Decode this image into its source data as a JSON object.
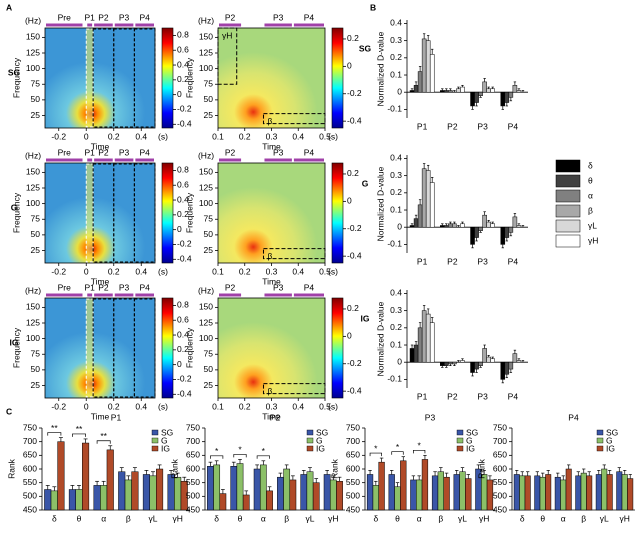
{
  "panel_labels": [
    "A",
    "B",
    "C"
  ],
  "chart_data": [
    {
      "type": "spectrogram",
      "rows": [
        {
          "name": "SG"
        },
        {
          "name": "G"
        },
        {
          "name": "IG"
        }
      ],
      "xlabel": "Time",
      "ylabel": "Frequency",
      "xunit": "(s)",
      "yunit": "(Hz)",
      "xlim": [
        -0.3,
        0.5
      ],
      "xticks": [
        -0.2,
        0,
        0.2,
        0.4
      ],
      "ylim": [
        5,
        165
      ],
      "yticks": [
        25,
        50,
        75,
        100,
        125,
        150
      ],
      "periods": [
        {
          "label": "Pre",
          "range": [
            -0.3,
            -0.02
          ]
        },
        {
          "label": "P1",
          "range": [
            0,
            0.05
          ]
        },
        {
          "label": "P2",
          "range": [
            0.05,
            0.2
          ]
        },
        {
          "label": "P3",
          "range": [
            0.2,
            0.35
          ]
        },
        {
          "label": "P4",
          "range": [
            0.35,
            0.5
          ]
        }
      ],
      "clim": [
        -0.45,
        0.9
      ],
      "cticks": [
        -0.4,
        -0.2,
        0,
        0.2,
        0.4,
        0.6,
        0.8
      ]
    },
    {
      "type": "spectrogram",
      "rows": [
        {
          "boxes": [
            {
              "label": "γH",
              "x": [
                0.1,
                0.17
              ],
              "y": [
                75,
                165
              ]
            },
            {
              "label": "β",
              "x": [
                0.27,
                0.5
              ],
              "y": [
                12,
                28
              ]
            }
          ]
        },
        {
          "boxes": [
            {
              "label": "β",
              "x": [
                0.27,
                0.5
              ],
              "y": [
                12,
                28
              ]
            }
          ]
        },
        {
          "boxes": [
            {
              "label": "β",
              "x": [
                0.27,
                0.5
              ],
              "y": [
                12,
                28
              ]
            }
          ]
        }
      ],
      "xlabel": "Time",
      "ylabel": "Frequency",
      "xunit": "(s)",
      "yunit": "(Hz)",
      "xlim": [
        0.1,
        0.5
      ],
      "xticks": [
        0.1,
        0.2,
        0.3,
        0.4,
        0.5
      ],
      "ylim": [
        5,
        165
      ],
      "yticks": [
        25,
        50,
        75,
        100,
        125,
        150
      ],
      "periods": [
        {
          "label": "P2",
          "range": [
            0.1,
            0.19
          ]
        },
        {
          "label": "P3",
          "range": [
            0.27,
            0.38
          ]
        },
        {
          "label": "P4",
          "range": [
            0.38,
            0.5
          ]
        }
      ],
      "clim": [
        -0.45,
        0.28
      ],
      "cticks": [
        -0.4,
        -0.2,
        0,
        0.2
      ]
    },
    {
      "type": "bar",
      "title": "SG",
      "ylabel": "Normalized D-value",
      "categories": [
        "P1",
        "P2",
        "P3",
        "P4"
      ],
      "ylim": [
        -0.15,
        0.42
      ],
      "yticks": [
        -0.1,
        0,
        0.1,
        0.2,
        0.3,
        0.4
      ],
      "series": [
        {
          "name": "δ",
          "color": "#000000",
          "values": [
            0.01,
            0.01,
            -0.08,
            -0.08
          ],
          "errors": [
            0.01,
            0.01,
            0.02,
            0.02
          ]
        },
        {
          "name": "θ",
          "color": "#404040",
          "values": [
            0.04,
            0.01,
            -0.06,
            -0.06
          ],
          "errors": [
            0.02,
            0.01,
            0.02,
            0.02
          ]
        },
        {
          "name": "α",
          "color": "#808080",
          "values": [
            0.12,
            0.01,
            -0.02,
            -0.03
          ],
          "errors": [
            0.03,
            0.01,
            0.01,
            0.02
          ]
        },
        {
          "name": "β",
          "color": "#a8a8a8",
          "values": [
            0.31,
            0.0,
            0.06,
            0.04
          ],
          "errors": [
            0.03,
            0.01,
            0.02,
            0.02
          ]
        },
        {
          "name": "γL",
          "color": "#d8d8d8",
          "values": [
            0.3,
            0.02,
            0.02,
            0.01
          ],
          "errors": [
            0.03,
            0.01,
            0.01,
            0.01
          ]
        },
        {
          "name": "γH",
          "color": "#ffffff",
          "values": [
            0.22,
            0.03,
            0.02,
            0.0
          ],
          "errors": [
            0.03,
            0.01,
            0.01,
            0.01
          ]
        }
      ]
    },
    {
      "type": "bar",
      "title": "G",
      "ylabel": "Normalized D-value",
      "categories": [
        "P1",
        "P2",
        "P3",
        "P4"
      ],
      "legend": "right",
      "ylim": [
        -0.15,
        0.42
      ],
      "yticks": [
        -0.1,
        0,
        0.1,
        0.2,
        0.3,
        0.4
      ],
      "series": [
        {
          "name": "δ",
          "color": "#000000",
          "values": [
            0.01,
            0.01,
            -0.1,
            -0.1
          ],
          "errors": [
            0.01,
            0.01,
            0.02,
            0.02
          ]
        },
        {
          "name": "θ",
          "color": "#404040",
          "values": [
            0.05,
            0.01,
            -0.06,
            -0.06
          ],
          "errors": [
            0.02,
            0.01,
            0.02,
            0.02
          ]
        },
        {
          "name": "α",
          "color": "#808080",
          "values": [
            0.13,
            0.02,
            -0.02,
            -0.03
          ],
          "errors": [
            0.03,
            0.01,
            0.01,
            0.02
          ]
        },
        {
          "name": "β",
          "color": "#a8a8a8",
          "values": [
            0.34,
            0.02,
            0.07,
            0.06
          ],
          "errors": [
            0.03,
            0.01,
            0.02,
            0.02
          ]
        },
        {
          "name": "γL",
          "color": "#d8d8d8",
          "values": [
            0.33,
            0.0,
            0.03,
            0.01
          ],
          "errors": [
            0.03,
            0.01,
            0.01,
            0.01
          ]
        },
        {
          "name": "γH",
          "color": "#ffffff",
          "values": [
            0.26,
            0.02,
            0.02,
            0.0
          ],
          "errors": [
            0.03,
            0.01,
            0.01,
            0.01
          ]
        }
      ]
    },
    {
      "type": "bar",
      "title": "IG",
      "ylabel": "Normalized D-value",
      "categories": [
        "P1",
        "P2",
        "P3",
        "P4"
      ],
      "ylim": [
        -0.15,
        0.42
      ],
      "yticks": [
        -0.1,
        0,
        0.1,
        0.2,
        0.3,
        0.4
      ],
      "series": [
        {
          "name": "δ",
          "color": "#000000",
          "values": [
            0.08,
            -0.02,
            -0.06,
            -0.1
          ],
          "errors": [
            0.02,
            0.01,
            0.02,
            0.02
          ]
        },
        {
          "name": "θ",
          "color": "#404040",
          "values": [
            0.1,
            -0.02,
            -0.04,
            -0.07
          ],
          "errors": [
            0.02,
            0.01,
            0.02,
            0.02
          ]
        },
        {
          "name": "α",
          "color": "#808080",
          "values": [
            0.2,
            -0.01,
            -0.02,
            -0.04
          ],
          "errors": [
            0.03,
            0.01,
            0.01,
            0.02
          ]
        },
        {
          "name": "β",
          "color": "#a8a8a8",
          "values": [
            0.3,
            -0.01,
            0.08,
            0.05
          ],
          "errors": [
            0.03,
            0.01,
            0.02,
            0.02
          ]
        },
        {
          "name": "γL",
          "color": "#d8d8d8",
          "values": [
            0.28,
            0.0,
            0.03,
            0.01
          ],
          "errors": [
            0.03,
            0.01,
            0.01,
            0.01
          ]
        },
        {
          "name": "γH",
          "color": "#ffffff",
          "values": [
            0.23,
            0.01,
            0.02,
            0.0
          ],
          "errors": [
            0.03,
            0.01,
            0.01,
            0.01
          ]
        }
      ]
    },
    {
      "type": "bar",
      "title": "P1",
      "ylabel": "Rank",
      "categories": [
        "δ",
        "θ",
        "α",
        "β",
        "γL",
        "γH"
      ],
      "legend": "upper right",
      "ylim": [
        450,
        750
      ],
      "yticks": [
        450,
        500,
        550,
        600,
        650,
        700,
        750
      ],
      "significance": [
        "**",
        "**",
        "**",
        null,
        null,
        null
      ],
      "series": [
        {
          "name": "SG",
          "color": "#3a56a8",
          "values": [
            525,
            525,
            540,
            590,
            580,
            580
          ],
          "errors": [
            15,
            15,
            15,
            15,
            15,
            15
          ]
        },
        {
          "name": "G",
          "color": "#8cc068",
          "values": [
            520,
            525,
            540,
            560,
            575,
            570
          ],
          "errors": [
            15,
            15,
            15,
            15,
            15,
            15
          ]
        },
        {
          "name": "IG",
          "color": "#b04a28",
          "values": [
            700,
            695,
            670,
            590,
            600,
            555
          ],
          "errors": [
            15,
            15,
            15,
            15,
            15,
            15
          ]
        }
      ]
    },
    {
      "type": "bar",
      "title": "P2",
      "ylabel": "Rank",
      "categories": [
        "δ",
        "θ",
        "α",
        "β",
        "γL",
        "γH"
      ],
      "legend": "upper right",
      "ylim": [
        450,
        750
      ],
      "yticks": [
        450,
        500,
        550,
        600,
        650,
        700,
        750
      ],
      "significance": [
        "*",
        "*",
        "*",
        null,
        null,
        null
      ],
      "series": [
        {
          "name": "SG",
          "color": "#3a56a8",
          "values": [
            610,
            610,
            600,
            570,
            580,
            580
          ],
          "errors": [
            15,
            15,
            15,
            15,
            15,
            15
          ]
        },
        {
          "name": "G",
          "color": "#8cc068",
          "values": [
            615,
            620,
            615,
            600,
            590,
            560
          ],
          "errors": [
            15,
            15,
            15,
            15,
            15,
            15
          ]
        },
        {
          "name": "IG",
          "color": "#b04a28",
          "values": [
            510,
            505,
            520,
            560,
            550,
            555
          ],
          "errors": [
            15,
            15,
            15,
            15,
            15,
            15
          ]
        }
      ]
    },
    {
      "type": "bar",
      "title": "P3",
      "ylabel": "Rank",
      "categories": [
        "δ",
        "θ",
        "α",
        "β",
        "γL",
        "γH"
      ],
      "legend": "upper right",
      "ylim": [
        450,
        750
      ],
      "yticks": [
        450,
        500,
        550,
        600,
        650,
        700,
        750
      ],
      "significance": [
        "*",
        "*",
        "*",
        null,
        null,
        null
      ],
      "series": [
        {
          "name": "SG",
          "color": "#3a56a8",
          "values": [
            580,
            580,
            560,
            575,
            580,
            600
          ],
          "errors": [
            15,
            15,
            15,
            15,
            15,
            15
          ]
        },
        {
          "name": "G",
          "color": "#8cc068",
          "values": [
            540,
            535,
            560,
            590,
            590,
            580
          ],
          "errors": [
            15,
            15,
            15,
            15,
            15,
            15
          ]
        },
        {
          "name": "IG",
          "color": "#b04a28",
          "values": [
            625,
            630,
            635,
            570,
            565,
            560
          ],
          "errors": [
            15,
            15,
            15,
            15,
            15,
            15
          ]
        }
      ]
    },
    {
      "type": "bar",
      "title": "P4",
      "ylabel": "Rank",
      "categories": [
        "δ",
        "θ",
        "α",
        "β",
        "γL",
        "γH"
      ],
      "legend": "upper right",
      "ylim": [
        450,
        750
      ],
      "yticks": [
        450,
        500,
        550,
        600,
        650,
        700,
        750
      ],
      "series": [
        {
          "name": "SG",
          "color": "#3a56a8",
          "values": [
            580,
            575,
            570,
            575,
            580,
            590
          ],
          "errors": [
            15,
            15,
            15,
            15,
            15,
            15
          ]
        },
        {
          "name": "G",
          "color": "#8cc068",
          "values": [
            575,
            570,
            560,
            585,
            600,
            580
          ],
          "errors": [
            15,
            15,
            15,
            15,
            15,
            15
          ]
        },
        {
          "name": "IG",
          "color": "#b04a28",
          "values": [
            575,
            580,
            600,
            575,
            580,
            565
          ],
          "errors": [
            15,
            15,
            15,
            15,
            15,
            15
          ]
        }
      ]
    }
  ]
}
